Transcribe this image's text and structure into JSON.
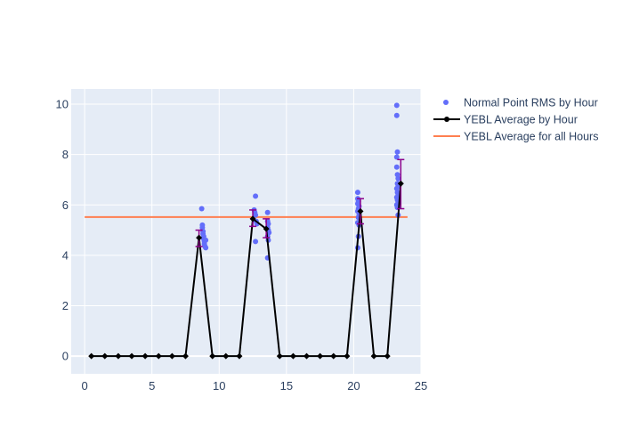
{
  "chart_data": {
    "type": "scatter",
    "background": "#e5ecf6",
    "grid": true,
    "legend_position": "top-right",
    "xlim": [
      -1,
      25
    ],
    "ylim": [
      -0.7,
      10.6
    ],
    "x_ticks": [
      0,
      5,
      10,
      15,
      20,
      25
    ],
    "y_ticks": [
      0,
      2,
      4,
      6,
      8,
      10
    ],
    "series": [
      {
        "name": "Normal Point RMS by Hour",
        "kind": "markers",
        "color": "#636efa",
        "points": [
          [
            8.7,
            5.85
          ],
          [
            8.75,
            5.2
          ],
          [
            8.75,
            5.1
          ],
          [
            8.8,
            4.95
          ],
          [
            8.8,
            4.85
          ],
          [
            8.85,
            4.75
          ],
          [
            8.85,
            4.65
          ],
          [
            8.9,
            4.55
          ],
          [
            8.9,
            4.45
          ],
          [
            8.95,
            4.35
          ],
          [
            9.0,
            4.3
          ],
          [
            9.0,
            4.6
          ],
          [
            12.7,
            6.35
          ],
          [
            12.6,
            5.8
          ],
          [
            12.65,
            5.7
          ],
          [
            12.7,
            5.6
          ],
          [
            12.75,
            5.35
          ],
          [
            12.8,
            5.25
          ],
          [
            12.7,
            4.55
          ],
          [
            13.6,
            5.7
          ],
          [
            13.6,
            5.35
          ],
          [
            13.65,
            5.25
          ],
          [
            13.6,
            5.1
          ],
          [
            13.65,
            5.0
          ],
          [
            13.7,
            4.9
          ],
          [
            13.6,
            4.75
          ],
          [
            13.65,
            4.6
          ],
          [
            13.6,
            3.9
          ],
          [
            20.3,
            6.5
          ],
          [
            20.3,
            6.25
          ],
          [
            20.35,
            6.15
          ],
          [
            20.3,
            6.05
          ],
          [
            20.4,
            5.95
          ],
          [
            20.35,
            5.85
          ],
          [
            20.3,
            5.75
          ],
          [
            20.4,
            5.6
          ],
          [
            20.35,
            5.5
          ],
          [
            20.3,
            5.3
          ],
          [
            20.4,
            5.2
          ],
          [
            20.35,
            4.75
          ],
          [
            20.3,
            4.3
          ],
          [
            23.2,
            9.95
          ],
          [
            23.2,
            9.55
          ],
          [
            23.25,
            8.1
          ],
          [
            23.2,
            7.9
          ],
          [
            23.2,
            7.5
          ],
          [
            23.25,
            7.2
          ],
          [
            23.3,
            7.05
          ],
          [
            23.25,
            6.85
          ],
          [
            23.3,
            6.75
          ],
          [
            23.2,
            6.65
          ],
          [
            23.25,
            6.5
          ],
          [
            23.3,
            6.4
          ],
          [
            23.2,
            6.3
          ],
          [
            23.25,
            6.2
          ],
          [
            23.3,
            6.1
          ],
          [
            23.2,
            6.0
          ],
          [
            23.25,
            5.9
          ],
          [
            23.3,
            5.6
          ]
        ]
      },
      {
        "name": "YEBL Average by Hour",
        "kind": "lines+markers",
        "color": "#000000",
        "points": [
          [
            0.5,
            0
          ],
          [
            1.5,
            0
          ],
          [
            2.5,
            0
          ],
          [
            3.5,
            0
          ],
          [
            4.5,
            0
          ],
          [
            5.5,
            0
          ],
          [
            6.5,
            0
          ],
          [
            7.5,
            0
          ],
          [
            8.5,
            4.7
          ],
          [
            9.5,
            0
          ],
          [
            10.5,
            0
          ],
          [
            11.5,
            0
          ],
          [
            12.5,
            5.45
          ],
          [
            13.5,
            5.05
          ],
          [
            14.5,
            0
          ],
          [
            15.5,
            0
          ],
          [
            16.5,
            0
          ],
          [
            17.5,
            0
          ],
          [
            18.5,
            0
          ],
          [
            19.5,
            0
          ],
          [
            20.5,
            5.75
          ],
          [
            21.5,
            0
          ],
          [
            22.5,
            0
          ],
          [
            23.5,
            6.85
          ]
        ],
        "error_bars": [
          {
            "x": 8.5,
            "low": 4.35,
            "high": 5.0
          },
          {
            "x": 12.5,
            "low": 5.15,
            "high": 5.8
          },
          {
            "x": 13.5,
            "low": 4.7,
            "high": 5.45
          },
          {
            "x": 20.5,
            "low": 5.25,
            "high": 6.25
          },
          {
            "x": 23.5,
            "low": 5.85,
            "high": 7.8
          }
        ],
        "error_color": "#8b008b"
      },
      {
        "name": "YEBL Average for all Hours",
        "kind": "line",
        "color": "#ff7f50",
        "x": [
          0,
          24
        ],
        "y": 5.52
      }
    ]
  }
}
